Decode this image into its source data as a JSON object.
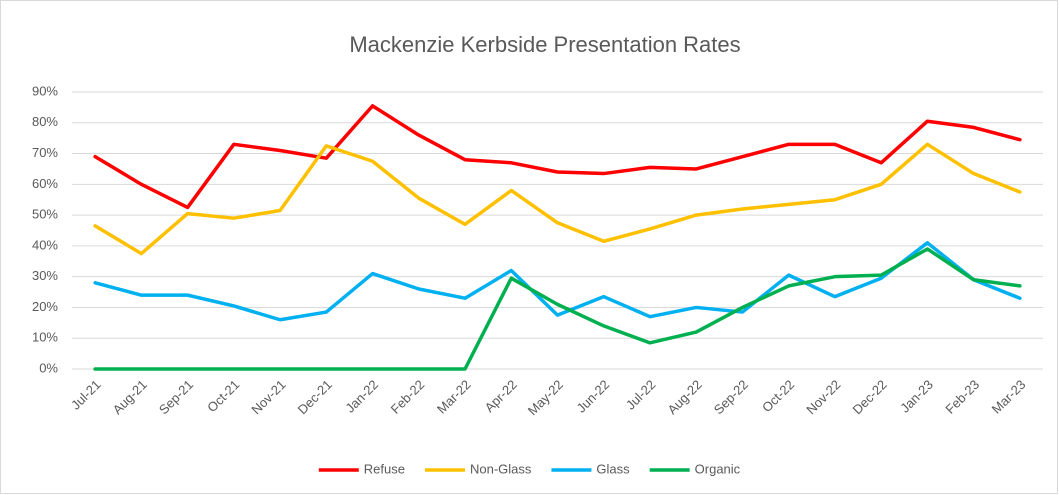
{
  "chart_data": {
    "type": "line",
    "title": "Mackenzie Kerbside Presentation Rates",
    "categories": [
      "Jul-21",
      "Aug-21",
      "Sep-21",
      "Oct-21",
      "Nov-21",
      "Dec-21",
      "Jan-22",
      "Feb-22",
      "Mar-22",
      "Apr-22",
      "May-22",
      "Jun-22",
      "Jul-22",
      "Aug-22",
      "Sep-22",
      "Oct-22",
      "Nov-22",
      "Dec-22",
      "Jan-23",
      "Feb-23",
      "Mar-23"
    ],
    "series": [
      {
        "name": "Refuse",
        "color": "#ff0000",
        "values": [
          69,
          60,
          52.5,
          73,
          71,
          68.5,
          85.5,
          76,
          68,
          67,
          64,
          63.5,
          65.5,
          65,
          69,
          73,
          73,
          67,
          80.5,
          78.5,
          74.5
        ]
      },
      {
        "name": "Non-Glass",
        "color": "#ffc000",
        "values": [
          46.5,
          37.5,
          50.5,
          49,
          51.5,
          72.5,
          67.5,
          55.5,
          47,
          58,
          47.5,
          41.5,
          45.5,
          50,
          52,
          53.5,
          55,
          60,
          73,
          63.5,
          57.5
        ]
      },
      {
        "name": "Glass",
        "color": "#00b0f0",
        "values": [
          28,
          24,
          24,
          20.5,
          16,
          18.5,
          31,
          26,
          23,
          32,
          17.5,
          23.5,
          17,
          20,
          18.5,
          30.5,
          23.5,
          29.5,
          41,
          29,
          23
        ]
      },
      {
        "name": "Organic",
        "color": "#00b050",
        "values": [
          0,
          0,
          0,
          0,
          0,
          0,
          0,
          0,
          0,
          29.5,
          21,
          14,
          8.5,
          12,
          20,
          27,
          30,
          30.5,
          39,
          29,
          27
        ]
      }
    ],
    "ylim": [
      0,
      90
    ],
    "yticks": [
      {
        "value": 0,
        "label": "0%"
      },
      {
        "value": 10,
        "label": "10%"
      },
      {
        "value": 20,
        "label": "20%"
      },
      {
        "value": 30,
        "label": "30%"
      },
      {
        "value": 40,
        "label": "40%"
      },
      {
        "value": 50,
        "label": "50%"
      },
      {
        "value": 60,
        "label": "60%"
      },
      {
        "value": 70,
        "label": "70%"
      },
      {
        "value": 80,
        "label": "80%"
      },
      {
        "value": 90,
        "label": "90%"
      }
    ],
    "grid": true,
    "legend": "bottom"
  }
}
